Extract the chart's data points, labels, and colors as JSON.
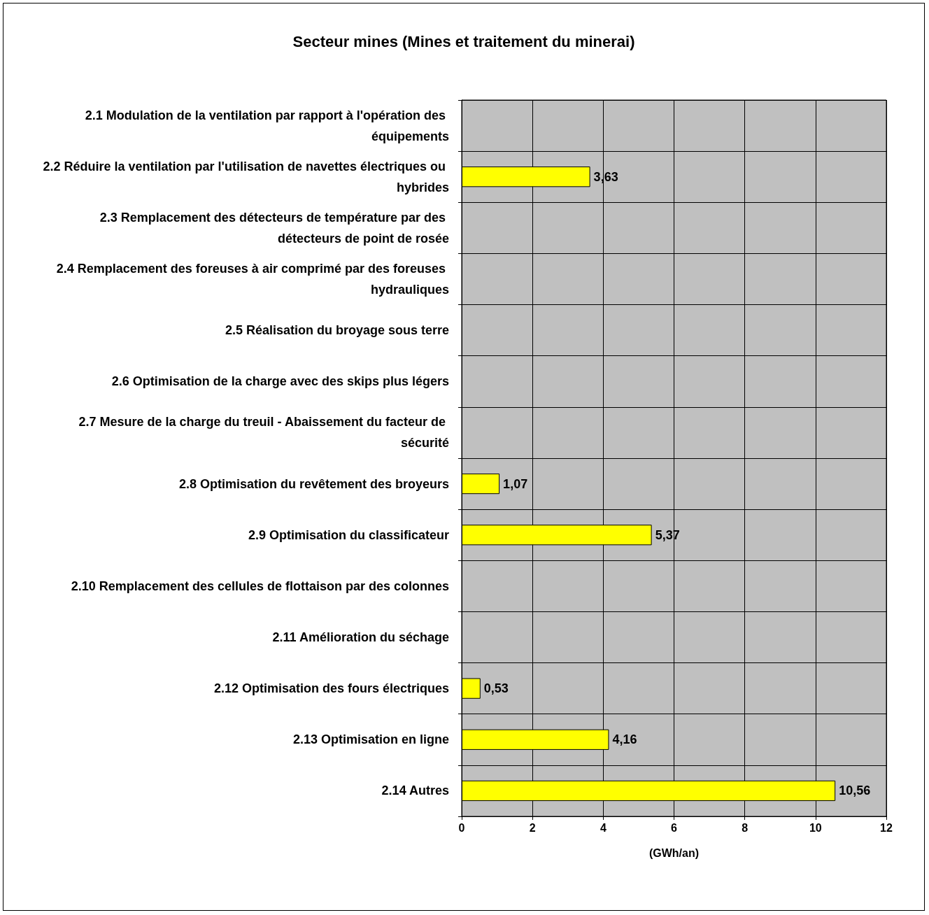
{
  "chart_data": {
    "type": "bar",
    "orientation": "horizontal",
    "title": "Secteur mines (Mines et traitement du minerai)",
    "xlabel": "(GWh/an)",
    "categories": [
      "2.1 Modulation de la ventilation par rapport à l'opération des équipements",
      "2.2 Réduire la ventilation par l'utilisation de navettes électriques ou hybrides",
      "2.3 Remplacement des détecteurs de température par des détecteurs de point de rosée",
      "2.4 Remplacement des foreuses à air comprimé par des foreuses hydrauliques",
      "2.5 Réalisation du broyage sous terre",
      "2.6 Optimisation de la charge avec des skips plus légers",
      "2.7 Mesure de la charge du treuil - Abaissement du facteur de sécurité",
      "2.8 Optimisation du revêtement des broyeurs",
      "2.9 Optimisation du classificateur",
      "2.10 Remplacement des cellules de flottaison par des colonnes",
      "2.11 Amélioration du séchage",
      "2.12 Optimisation des fours électriques",
      "2.13 Optimisation en ligne",
      "2.14 Autres"
    ],
    "values": [
      null,
      3.63,
      null,
      null,
      null,
      null,
      null,
      1.07,
      5.37,
      null,
      null,
      0.53,
      4.16,
      10.56
    ],
    "value_labels": [
      null,
      "3,63",
      null,
      null,
      null,
      null,
      null,
      "1,07",
      "5,37",
      null,
      null,
      "0,53",
      "4,16",
      "10,56"
    ],
    "color": "#ffff00",
    "xlim": [
      0,
      12
    ],
    "xticks": [
      0,
      2,
      4,
      6,
      8,
      10,
      12
    ],
    "grid": true
  }
}
